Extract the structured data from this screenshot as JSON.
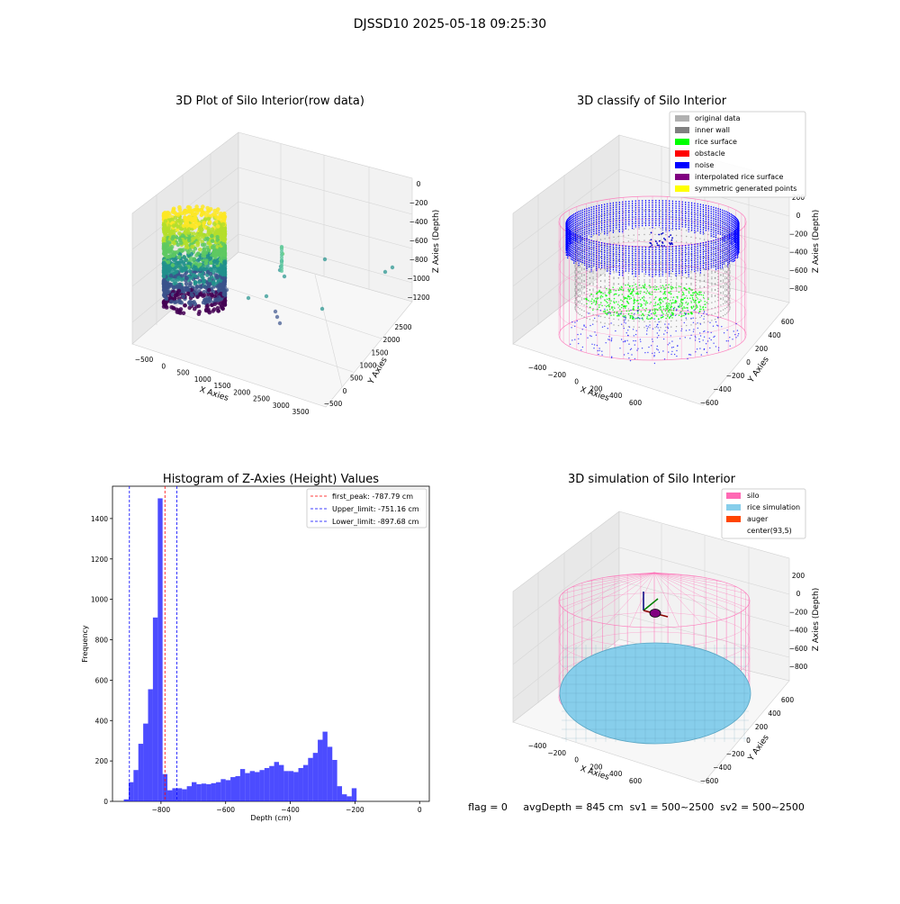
{
  "figure": {
    "suptitle": "DJSSD10 2025-05-18 09:25:30",
    "status_line": "flag = 0     avgDepth = 845 cm  sv1 = 500~2500  sv2 = 500~2500"
  },
  "colors": {
    "silo": "#ff69b4",
    "rice_sim": "#87ceeb",
    "auger": "#ff4500",
    "original": "#b0b0b0",
    "inner_wall": "#808080",
    "rice_surface": "#00ff00",
    "obstacle": "#ff0000",
    "noise": "#0000ff",
    "interp": "#800080",
    "symmetric": "#ffff00",
    "hist": "#0000ff"
  },
  "chart_data": [
    {
      "type": "scatter3d",
      "title": "3D Plot of Silo Interior(row data)",
      "xlabel": "X Axies",
      "ylabel": "Y Axies",
      "zlabel": "Z Axies (Depth)",
      "xticks": [
        "−500",
        "0",
        "500",
        "1000",
        "1500",
        "2000",
        "2500",
        "3000",
        "3500"
      ],
      "yticks": [
        "−500",
        "0",
        "500",
        "1000",
        "1500",
        "2000",
        "2500"
      ],
      "zticks": [
        "0",
        "−200",
        "−400",
        "−600",
        "−800",
        "−1000",
        "−1200"
      ],
      "xlim": [
        -600,
        3600
      ],
      "ylim": [
        -600,
        2700
      ],
      "zlim": [
        -1300,
        50
      ]
    },
    {
      "type": "scatter3d",
      "title": "3D classify of Silo Interior",
      "xlabel": "X Axies",
      "ylabel": "Y Axies",
      "zlabel": "Z Axies (Depth)",
      "xticks": [
        "−400",
        "−200",
        "0",
        "200",
        "400",
        "600"
      ],
      "yticks": [
        "−600",
        "−400",
        "−200",
        "0",
        "200",
        "400",
        "600"
      ],
      "zticks": [
        "200",
        "0",
        "−200",
        "−400",
        "−600",
        "−800"
      ],
      "legend": [
        "original data",
        "inner wall",
        "rice surface",
        "obstacle",
        "noise",
        "interpolated rice surface",
        "symmetric generated points"
      ],
      "legend_loc": "upper right"
    },
    {
      "type": "bar",
      "title": "Histogram of Z-Axies (Height) Values",
      "xlabel": "Depth (cm)",
      "ylabel": "Frequency",
      "xlim": [
        -950,
        30
      ],
      "ylim": [
        0,
        1560
      ],
      "xticks": [
        -800,
        -600,
        -400,
        -200,
        0
      ],
      "xtick_labels": [
        "−800",
        "−600",
        "−400",
        "−200",
        "0"
      ],
      "yticks": [
        0,
        200,
        400,
        600,
        800,
        1000,
        1200,
        1400
      ],
      "bin_width": 15,
      "bins_start": -915,
      "values": [
        10,
        95,
        155,
        285,
        385,
        555,
        910,
        1500,
        135,
        55,
        65,
        65,
        60,
        75,
        95,
        85,
        88,
        85,
        90,
        95,
        110,
        105,
        120,
        125,
        160,
        140,
        150,
        145,
        155,
        165,
        175,
        195,
        180,
        150,
        150,
        145,
        165,
        180,
        215,
        240,
        305,
        345,
        270,
        205,
        75,
        35,
        25,
        65
      ],
      "lines": [
        {
          "label": "first_peak: -787.79 cm",
          "x": -787.79,
          "color": "#ff0000"
        },
        {
          "label": "Upper_limit: -751.16 cm",
          "x": -751.16,
          "color": "#0000ff"
        },
        {
          "label": "Lower_limit: -897.68 cm",
          "x": -897.68,
          "color": "#0000ff"
        }
      ],
      "legend_loc": "upper right"
    },
    {
      "type": "surface3d",
      "title": "3D simulation of Silo Interior",
      "xlabel": "X Axies",
      "ylabel": "Y Axies",
      "zlabel": "Z Axies (Depth)",
      "xticks": [
        "−400",
        "−200",
        "0",
        "200",
        "400",
        "600"
      ],
      "yticks": [
        "−600",
        "−400",
        "−200",
        "0",
        "200",
        "400",
        "600"
      ],
      "zticks": [
        "200",
        "0",
        "−200",
        "−400",
        "−600",
        "−800"
      ],
      "legend": [
        "silo",
        "rice simulation",
        "auger",
        "center(93,5)"
      ],
      "legend_loc": "upper right"
    }
  ]
}
